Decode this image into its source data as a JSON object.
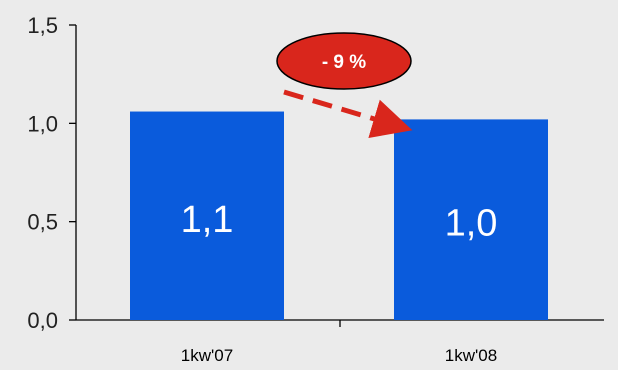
{
  "chart_data": {
    "type": "bar",
    "categories": [
      "1kw'07",
      "1kw'08"
    ],
    "values": [
      1.06,
      1.02
    ],
    "data_labels": [
      "1,1",
      "1,0"
    ],
    "y_ticks": [
      {
        "value": 0.0,
        "label": "0,0"
      },
      {
        "value": 0.5,
        "label": "0,5"
      },
      {
        "value": 1.0,
        "label": "1,0"
      },
      {
        "value": 1.5,
        "label": "1,5"
      }
    ],
    "ylim": [
      0,
      1.5
    ],
    "title": "",
    "xlabel": "",
    "ylabel": "",
    "grid": false,
    "annotation": {
      "text": "- 9 %",
      "from_category": "1kw'07",
      "to_category": "1kw'08"
    },
    "colors": {
      "bar": "#0a5bdc",
      "annotation": "#d9261c",
      "axis": "#000000",
      "background": "#ebebeb"
    }
  }
}
